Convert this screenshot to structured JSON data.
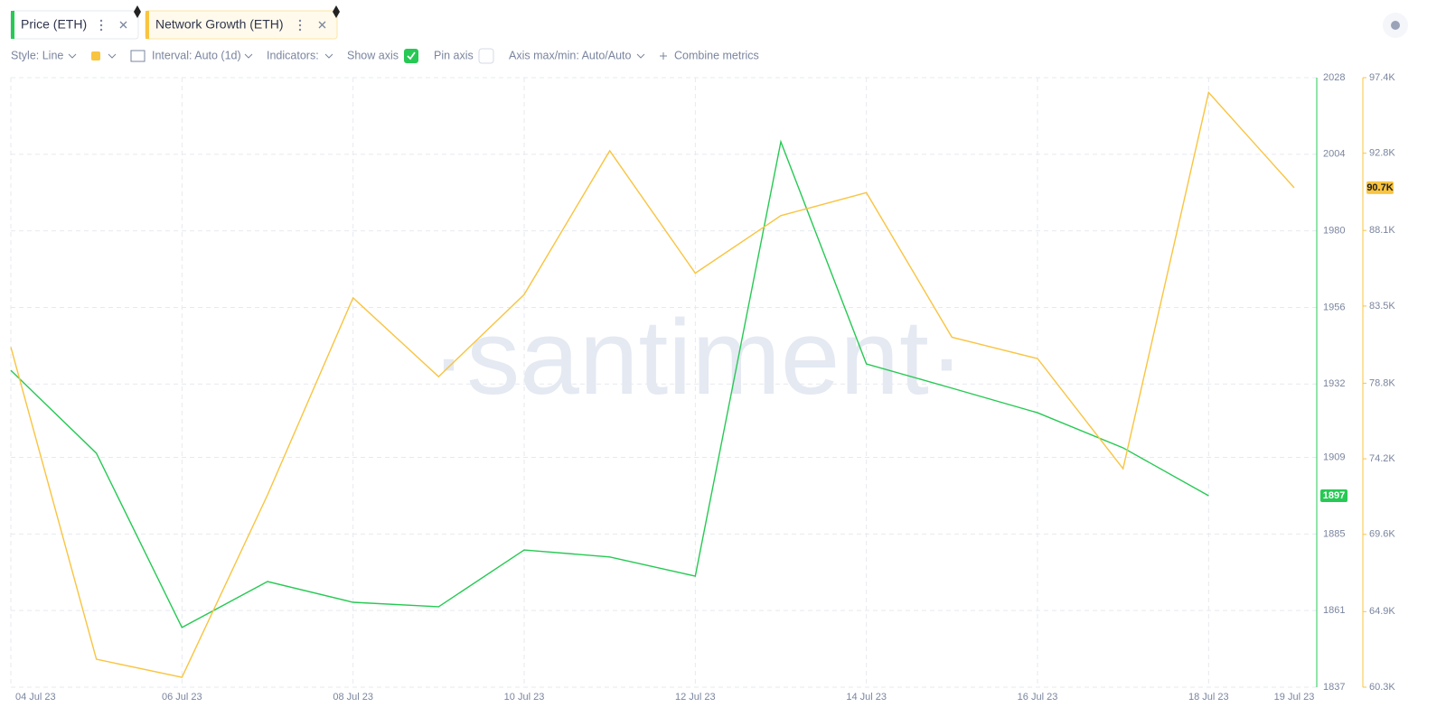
{
  "ui": {
    "tabs": [
      "Price (ETH)",
      "Network Growth (ETH)"
    ],
    "toolbar": [
      "Style: Line",
      "Interval: Auto (1d)",
      "Indicators:",
      "Show axis",
      "Pin axis",
      "Axis max/min: Auto/Auto",
      "Combine metrics"
    ],
    "watermark": "·santiment·"
  },
  "chart_data": {
    "type": "line",
    "categories": [
      "04 Jul 23",
      null,
      "06 Jul 23",
      null,
      "08 Jul 23",
      null,
      "10 Jul 23",
      null,
      "12 Jul 23",
      null,
      "14 Jul 23",
      null,
      "16 Jul 23",
      null,
      "18 Jul 23",
      "19 Jul 23"
    ],
    "series": [
      {
        "name": "Price (ETH)",
        "color": "#26c953",
        "axis": "y",
        "values": [
          1936.3,
          1910.3,
          1855.7,
          1870.1,
          1863.6,
          1862.2,
          1880.0,
          1877.8,
          1871.8,
          2007.9,
          1938.3,
          1930.7,
          1923.0,
          1912.0,
          1897,
          null
        ]
      },
      {
        "name": "Network Growth (ETH)",
        "color": "#f9c440",
        "axis": "y2",
        "values": [
          81000,
          62000,
          60900,
          72000,
          84000,
          79200,
          84200,
          92950,
          85500,
          89000,
          90400,
          81600,
          80300,
          73600,
          96500,
          90700
        ],
        "value_labels": [
          null,
          null,
          null,
          null,
          null,
          null,
          null,
          null,
          null,
          null,
          null,
          null,
          null,
          null,
          null,
          "90.7K"
        ]
      }
    ],
    "ylim": [
      1837,
      2028
    ],
    "yticks": [
      1837,
      1861,
      1885,
      1909,
      1932,
      1956,
      1980,
      2004,
      2028
    ],
    "y2lim": [
      60300,
      97400
    ],
    "y2ticks": [
      {
        "value": 60300,
        "label": "60.3K"
      },
      {
        "value": 64900,
        "label": "64.9K"
      },
      {
        "value": 69600,
        "label": "69.6K"
      },
      {
        "value": 74200,
        "label": "74.2K"
      },
      {
        "value": 78800,
        "label": "78.8K"
      },
      {
        "value": 83500,
        "label": "83.5K"
      },
      {
        "value": 88100,
        "label": "88.1K"
      },
      {
        "value": 92800,
        "label": "92.8K"
      },
      {
        "value": 97400,
        "label": "97.4K"
      }
    ],
    "grid": true
  }
}
